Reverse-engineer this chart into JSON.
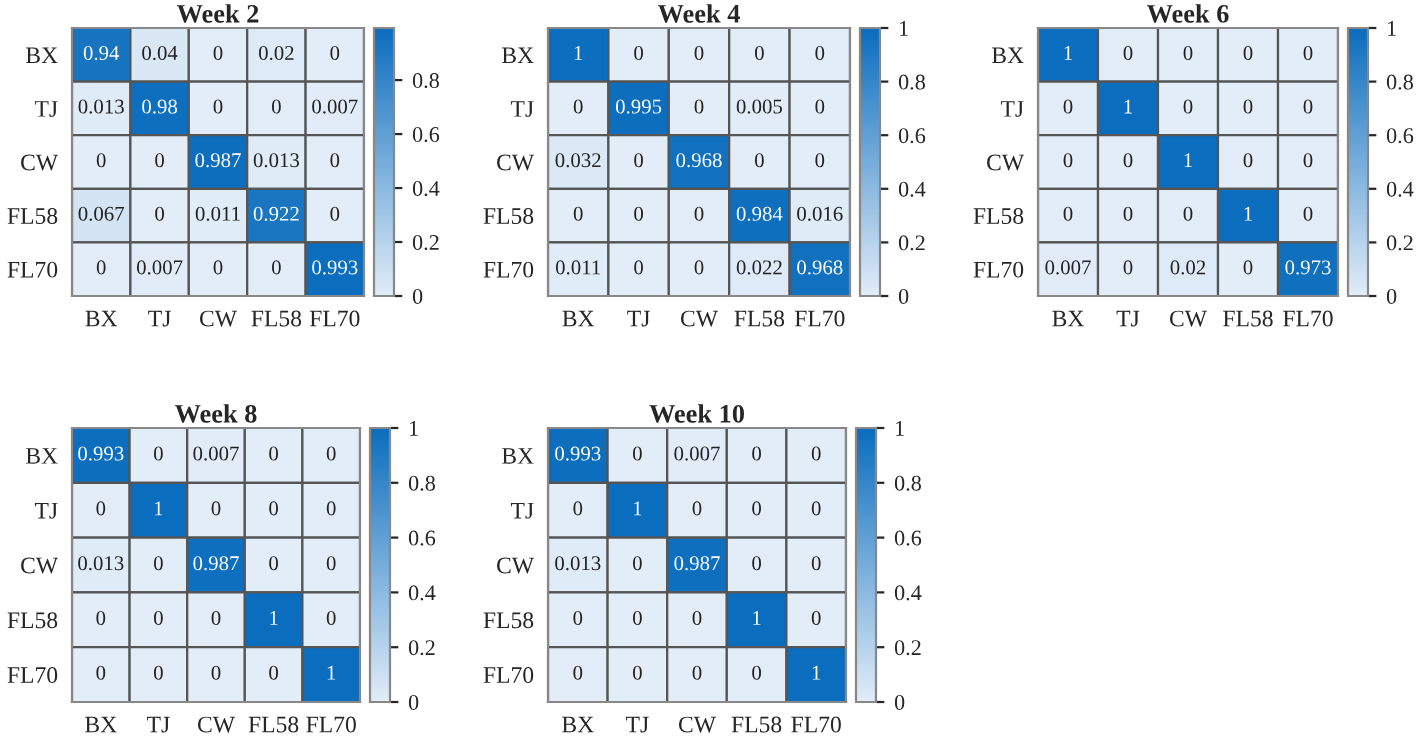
{
  "chart_data": [
    {
      "type": "heatmap",
      "title": "Week 2",
      "categories": [
        "BX",
        "TJ",
        "CW",
        "FL58",
        "FL70"
      ],
      "y_categories": [
        "BX",
        "TJ",
        "CW",
        "FL58",
        "FL70"
      ],
      "cells": [
        [
          0.94,
          0.04,
          0,
          0.02,
          0
        ],
        [
          0.013,
          0.98,
          0,
          0,
          0.007
        ],
        [
          0,
          0,
          0.987,
          0.013,
          0
        ],
        [
          0.067,
          0,
          0.011,
          0.922,
          0
        ],
        [
          0,
          0.007,
          0,
          0,
          0.993
        ]
      ],
      "data_labels": true,
      "clim": [
        0,
        0.993
      ],
      "cticks": [
        0,
        0.2,
        0.4,
        0.6,
        0.8
      ]
    },
    {
      "type": "heatmap",
      "title": "Week 4",
      "categories": [
        "BX",
        "TJ",
        "CW",
        "FL58",
        "FL70"
      ],
      "y_categories": [
        "BX",
        "TJ",
        "CW",
        "FL58",
        "FL70"
      ],
      "cells": [
        [
          1,
          0,
          0,
          0,
          0
        ],
        [
          0,
          0.995,
          0,
          0.005,
          0
        ],
        [
          0.032,
          0,
          0.968,
          0,
          0
        ],
        [
          0,
          0,
          0,
          0.984,
          0.016
        ],
        [
          0.011,
          0,
          0,
          0.022,
          0.968
        ]
      ],
      "data_labels": true,
      "clim": [
        0,
        1
      ],
      "cticks": [
        0,
        0.2,
        0.4,
        0.6,
        0.8,
        1
      ]
    },
    {
      "type": "heatmap",
      "title": "Week 6",
      "categories": [
        "BX",
        "TJ",
        "CW",
        "FL58",
        "FL70"
      ],
      "y_categories": [
        "BX",
        "TJ",
        "CW",
        "FL58",
        "FL70"
      ],
      "cells": [
        [
          1,
          0,
          0,
          0,
          0
        ],
        [
          0,
          1,
          0,
          0,
          0
        ],
        [
          0,
          0,
          1,
          0,
          0
        ],
        [
          0,
          0,
          0,
          1,
          0
        ],
        [
          0.007,
          0,
          0.02,
          0,
          0.973
        ]
      ],
      "data_labels": true,
      "clim": [
        0,
        1
      ],
      "cticks": [
        0,
        0.2,
        0.4,
        0.6,
        0.8,
        1
      ]
    },
    {
      "type": "heatmap",
      "title": "Week 8",
      "categories": [
        "BX",
        "TJ",
        "CW",
        "FL58",
        "FL70"
      ],
      "y_categories": [
        "BX",
        "TJ",
        "CW",
        "FL58",
        "FL70"
      ],
      "cells": [
        [
          0.993,
          0,
          0.007,
          0,
          0
        ],
        [
          0,
          1,
          0,
          0,
          0
        ],
        [
          0.013,
          0,
          0.987,
          0,
          0
        ],
        [
          0,
          0,
          0,
          1,
          0
        ],
        [
          0,
          0,
          0,
          0,
          1
        ]
      ],
      "data_labels": true,
      "clim": [
        0,
        1
      ],
      "cticks": [
        0,
        0.2,
        0.4,
        0.6,
        0.8,
        1
      ]
    },
    {
      "type": "heatmap",
      "title": "Week 10",
      "categories": [
        "BX",
        "TJ",
        "CW",
        "FL58",
        "FL70"
      ],
      "y_categories": [
        "BX",
        "TJ",
        "CW",
        "FL58",
        "FL70"
      ],
      "cells": [
        [
          0.993,
          0,
          0.007,
          0,
          0
        ],
        [
          0,
          1,
          0,
          0,
          0
        ],
        [
          0.013,
          0,
          0.987,
          0,
          0
        ],
        [
          0,
          0,
          0,
          1,
          0
        ],
        [
          0,
          0,
          0,
          0,
          1
        ]
      ],
      "data_labels": true,
      "clim": [
        0,
        1
      ],
      "cticks": [
        0,
        0.2,
        0.4,
        0.6,
        0.8,
        1
      ]
    }
  ]
}
